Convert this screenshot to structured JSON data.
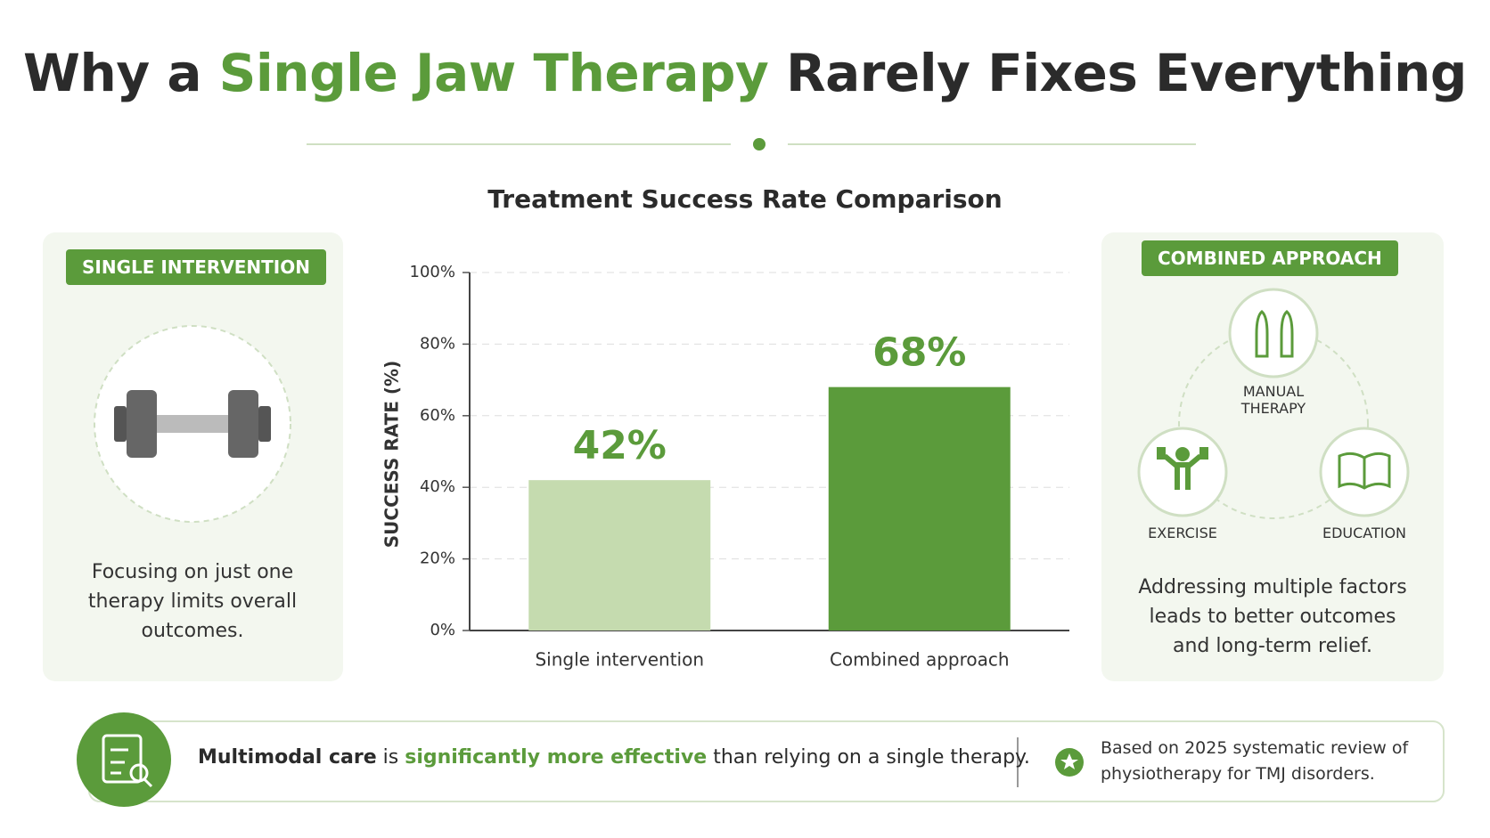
{
  "header": {
    "title": [
      "Why a ",
      "Single Jaw Therapy",
      " Rarely Fixes Everything"
    ]
  },
  "chart_data": {
    "type": "bar",
    "title": "Treatment Success Rate Comparison",
    "y_label": "SUCCESS RATE (%)",
    "categories": [
      "Single intervention",
      "Combined approach"
    ],
    "values": [
      42,
      68
    ],
    "value_labels": [
      "42%",
      "68%"
    ],
    "colors": [
      "#c5dbaf",
      "#5b9b3b"
    ],
    "value_label_color": "#5b9b3b",
    "ylim": [
      0,
      100
    ],
    "yticks": [
      {
        "value": 0,
        "label": "0%"
      },
      {
        "value": 20,
        "label": "20%"
      },
      {
        "value": 40,
        "label": "40%"
      },
      {
        "value": 60,
        "label": "60%"
      },
      {
        "value": 80,
        "label": "80%"
      },
      {
        "value": 100,
        "label": "100%"
      }
    ],
    "grid": true
  },
  "left_panel": {
    "badge": "SINGLE INTERVENTION",
    "text": "Focusing on just one therapy limits overall outcomes."
  },
  "right_panel": {
    "badge": "COMBINED APPROACH",
    "items": [
      "MANUAL THERAPY",
      "EXERCISE",
      "EDUCATION"
    ],
    "text": "Addressing multiple factors leads to better outcomes and long-term relief."
  },
  "footer": {
    "parts": [
      "Multimodal care",
      " is ",
      "significantly more effective",
      " than relying on a single therapy."
    ],
    "source": "Based on 2025 systematic review of physiotherapy for TMJ disorders."
  }
}
